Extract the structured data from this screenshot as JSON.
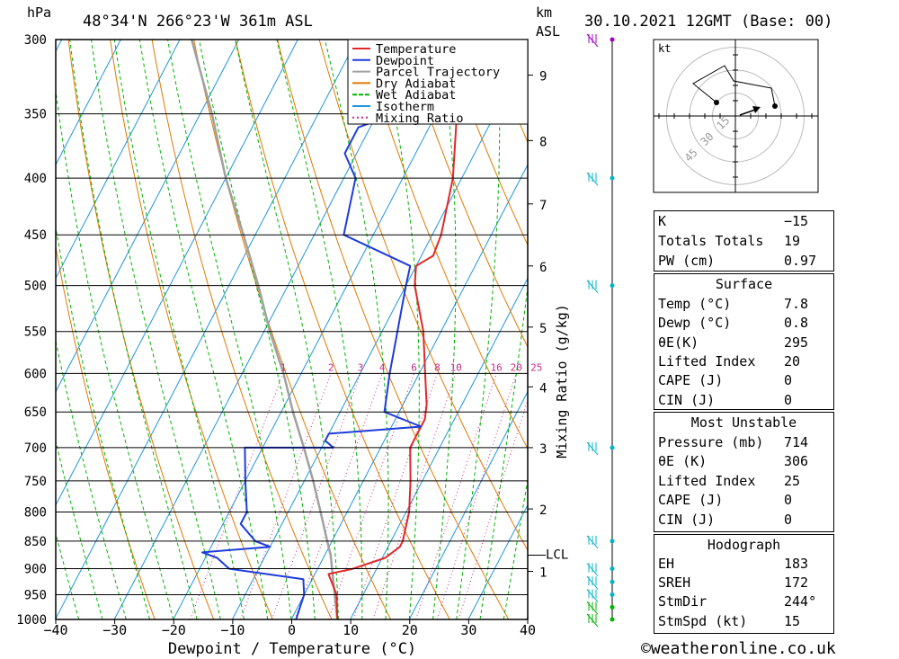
{
  "header": {
    "hpa": "hPa",
    "location": "48°34'N  266°23'W  361m  ASL",
    "km": "km",
    "asl": "ASL",
    "datetime": "30.10.2021  12GMT  (Base: 00)"
  },
  "footer": {
    "copyright": "©weatheronline.co.uk"
  },
  "chart_data": {
    "type": "skew-t log-p",
    "xlabel": "Dewpoint / Temperature (°C)",
    "ylabel_right": "Mixing Ratio (g/kg)",
    "xlim": [
      -40,
      40
    ],
    "ylim_hpa": [
      1000,
      300
    ],
    "x_ticks": [
      "−40",
      "−30",
      "−20",
      "−10",
      "0",
      "10",
      "20",
      "30",
      "40"
    ],
    "pressure_ticks": [
      300,
      350,
      400,
      450,
      500,
      550,
      600,
      650,
      700,
      750,
      800,
      850,
      900,
      950,
      1000
    ],
    "height_km_ticks": [
      {
        "label": "1",
        "p": 905
      },
      {
        "label": "2",
        "p": 795
      },
      {
        "label": "3",
        "p": 700
      },
      {
        "label": "4",
        "p": 617
      },
      {
        "label": "5",
        "p": 545
      },
      {
        "label": "6",
        "p": 480
      },
      {
        "label": "7",
        "p": 422
      },
      {
        "label": "8",
        "p": 370
      },
      {
        "label": "9",
        "p": 323
      }
    ],
    "lcl": {
      "label": "LCL",
      "p": 875
    },
    "mixing_ratio_labels": [
      "1",
      "2",
      "3",
      "4",
      "6",
      "8",
      "10",
      "16",
      "20",
      "25"
    ],
    "legend": [
      {
        "name": "Temperature",
        "color": "#e02828"
      },
      {
        "name": "Dewpoint",
        "color": "#1e3cdc"
      },
      {
        "name": "Parcel Trajectory",
        "color": "#a0a0a0"
      },
      {
        "name": "Dry Adiabat",
        "color": "#e07800"
      },
      {
        "name": "Wet Adiabat",
        "color": "#00b400"
      },
      {
        "name": "Isotherm",
        "color": "#1e96dc"
      },
      {
        "name": "Mixing Ratio",
        "color": "#c8288c"
      }
    ],
    "temperature": [
      [
        1000,
        7.8
      ],
      [
        950,
        5.5
      ],
      [
        910,
        2.3
      ],
      [
        900,
        6.0
      ],
      [
        880,
        10.5
      ],
      [
        860,
        12.0
      ],
      [
        850,
        12.0
      ],
      [
        800,
        10.5
      ],
      [
        750,
        8.0
      ],
      [
        700,
        5.0
      ],
      [
        680,
        5.0
      ],
      [
        660,
        5.0
      ],
      [
        640,
        4.0
      ],
      [
        600,
        1.0
      ],
      [
        550,
        -3.0
      ],
      [
        500,
        -8.5
      ],
      [
        480,
        -10.0
      ],
      [
        470,
        -8.0
      ],
      [
        450,
        -8.5
      ],
      [
        400,
        -11.5
      ],
      [
        350,
        -16.5
      ],
      [
        300,
        -21.0
      ]
    ],
    "dewpoint": [
      [
        1000,
        0.8
      ],
      [
        950,
        0.0
      ],
      [
        920,
        -1.5
      ],
      [
        900,
        -15.0
      ],
      [
        880,
        -18.0
      ],
      [
        870,
        -21.0
      ],
      [
        860,
        -10.0
      ],
      [
        850,
        -13.0
      ],
      [
        820,
        -17.0
      ],
      [
        800,
        -17.0
      ],
      [
        750,
        -20.0
      ],
      [
        700,
        -23.0
      ],
      [
        700,
        -8.0
      ],
      [
        690,
        -10.0
      ],
      [
        680,
        -10.0
      ],
      [
        670,
        5.0
      ],
      [
        650,
        -2.5
      ],
      [
        600,
        -5.0
      ],
      [
        500,
        -10.0
      ],
      [
        480,
        -11.0
      ],
      [
        450,
        -25.0
      ],
      [
        400,
        -28.0
      ],
      [
        380,
        -32.0
      ],
      [
        360,
        -32.0
      ],
      [
        350,
        -27.0
      ],
      [
        320,
        -24.0
      ],
      [
        300,
        -26.0
      ]
    ],
    "parcel": [
      [
        1000,
        7.8
      ],
      [
        875,
        1.0
      ],
      [
        850,
        -0.8
      ],
      [
        800,
        -4.5
      ],
      [
        750,
        -8.5
      ],
      [
        700,
        -13.0
      ],
      [
        650,
        -18.0
      ],
      [
        600,
        -23.0
      ],
      [
        550,
        -29.0
      ],
      [
        500,
        -35.0
      ],
      [
        450,
        -42.0
      ],
      [
        400,
        -50.0
      ],
      [
        350,
        -58.0
      ],
      [
        300,
        -68.0
      ]
    ],
    "hodograph": {
      "unit": "kt",
      "ring_labels": [
        "15",
        "30",
        "45"
      ]
    },
    "indices": {
      "rows": [
        {
          "key": "K",
          "value": "−15"
        },
        {
          "key": "Totals Totals",
          "value": "19"
        },
        {
          "key": "PW (cm)",
          "value": "0.97"
        }
      ],
      "surface": {
        "title": "Surface",
        "rows": [
          {
            "key": "Temp (°C)",
            "value": "7.8"
          },
          {
            "key": "Dewp (°C)",
            "value": "0.8"
          },
          {
            "key": "θE(K)",
            "value": "295"
          },
          {
            "key": "Lifted Index",
            "value": "20"
          },
          {
            "key": "CAPE (J)",
            "value": "0"
          },
          {
            "key": "CIN (J)",
            "value": "0"
          }
        ]
      },
      "most_unstable": {
        "title": "Most Unstable",
        "rows": [
          {
            "key": "Pressure (mb)",
            "value": "714"
          },
          {
            "key": "θE (K)",
            "value": "306"
          },
          {
            "key": "Lifted Index",
            "value": "25"
          },
          {
            "key": "CAPE (J)",
            "value": "0"
          },
          {
            "key": "CIN (J)",
            "value": "0"
          }
        ]
      },
      "hodograph": {
        "title": "Hodograph",
        "rows": [
          {
            "key": "EH",
            "value": "183"
          },
          {
            "key": "SREH",
            "value": "172"
          },
          {
            "key": "StmDir",
            "value": "244°"
          },
          {
            "key": "StmSpd (kt)",
            "value": "15"
          }
        ]
      }
    },
    "wind_barb_pressures": [
      300,
      400,
      500,
      700,
      850,
      900,
      925,
      950,
      975,
      1000
    ]
  }
}
